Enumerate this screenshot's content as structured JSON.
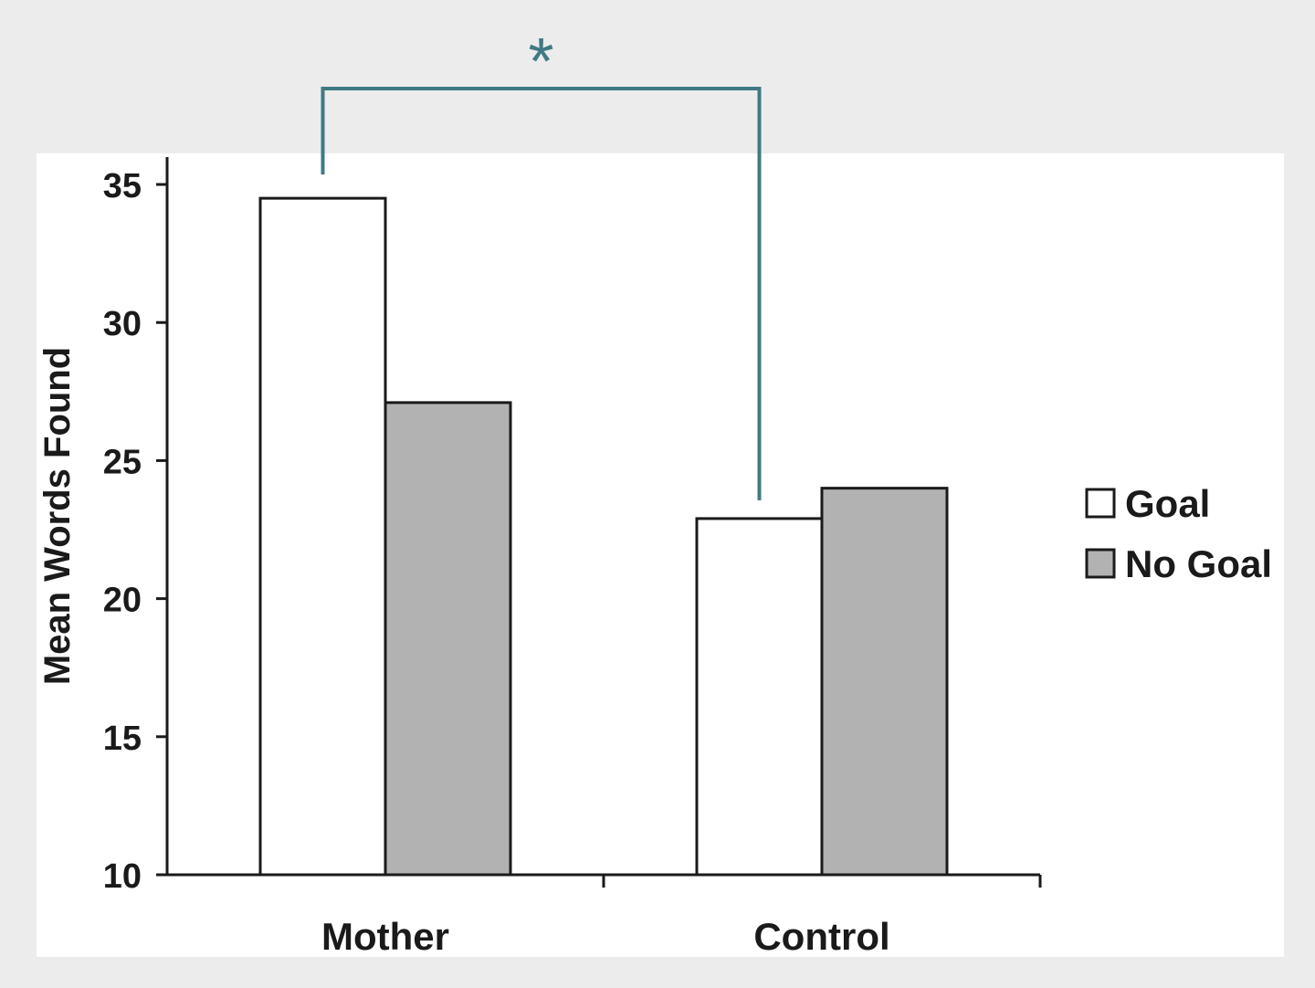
{
  "chart_data": {
    "type": "bar",
    "categories": [
      "Mother",
      "Control"
    ],
    "series": [
      {
        "name": "Goal",
        "values": [
          34.5,
          22.9
        ],
        "color": "#ffffff"
      },
      {
        "name": "No Goal",
        "values": [
          27.1,
          24.0
        ],
        "color": "#b2b2b2"
      }
    ],
    "ylabel": "Mean Words Found",
    "xlabel": "",
    "ylim": [
      10,
      35
    ],
    "yticks": [
      10,
      15,
      20,
      25,
      30,
      35
    ],
    "grid": false,
    "legend": "right",
    "annotation": {
      "label": "*",
      "between": [
        "Mother Goal",
        "Control Goal"
      ],
      "color": "#3f7a84"
    }
  },
  "colors": {
    "background": "#ececec",
    "plot_background": "#ffffff",
    "axis": "#1a1a1a",
    "bar_outline": "#1a1a1a"
  }
}
